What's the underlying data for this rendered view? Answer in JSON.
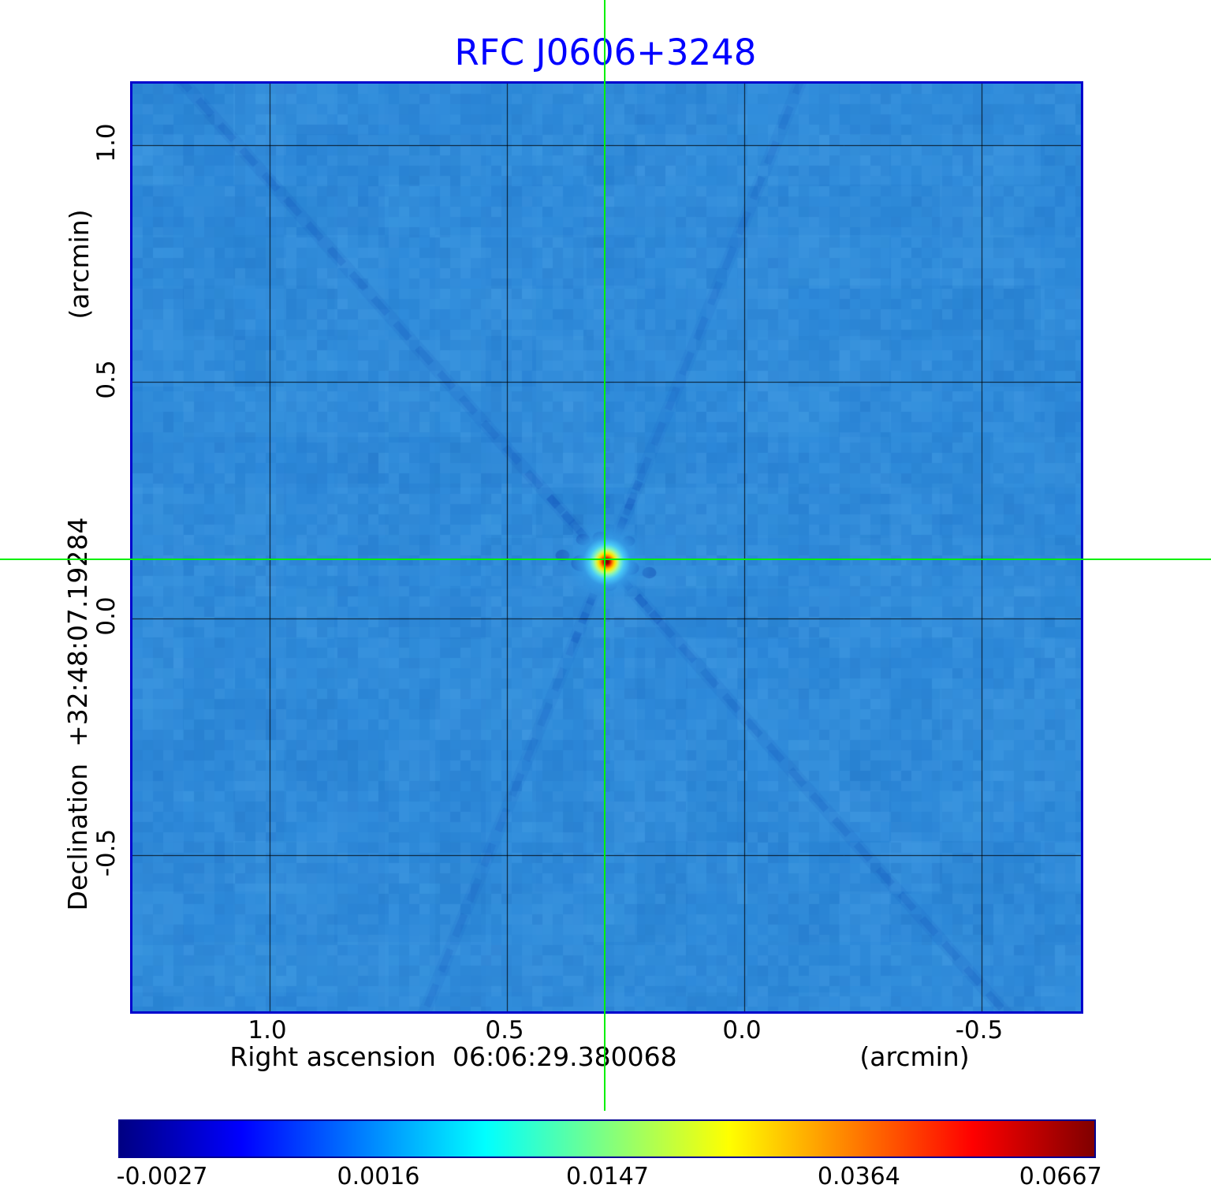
{
  "title": "RFC J0606+3248",
  "colors": {
    "title": "#0000ff",
    "frame": "#0000cd",
    "crosshair": "#00f000",
    "grid": "#000000",
    "background": "#ffffff"
  },
  "y_axis": {
    "unit_label": "(arcmin)",
    "axis_label": "Declination  +32:48:07.19284",
    "tick_labels": [
      "1.0",
      "0.5",
      "0.0",
      "-0.5"
    ]
  },
  "x_axis": {
    "unit_label": "(arcmin)",
    "axis_label": "Right ascension  06:06:29.380068",
    "tick_labels": [
      "1.0",
      "0.5",
      "0.0",
      "-0.5"
    ]
  },
  "colorbar": {
    "tick_labels": [
      "-0.0027",
      "0.0016",
      "0.0147",
      "0.0364",
      "0.0667"
    ],
    "tick_positions": [
      0.045,
      0.267,
      0.502,
      0.76,
      0.967
    ],
    "gradient_colors": [
      "#000083",
      "#0000ff",
      "#0080ff",
      "#00ffff",
      "#80ff80",
      "#ffff00",
      "#ff8000",
      "#ff0000",
      "#800000"
    ]
  },
  "chart_data": {
    "type": "heatmap",
    "title": "RFC J0606+3248",
    "xlabel": "Right ascension 06:06:29.380068 (arcmin)",
    "ylabel": "Declination +32:48:07.19284 (arcmin)",
    "colormap": "jet",
    "grid": true,
    "legend": "colorbar-bottom",
    "x_ticks": [
      1.0,
      0.5,
      0.0,
      -0.5
    ],
    "y_ticks": [
      1.0,
      0.5,
      0.0,
      -0.5
    ],
    "x_range": [
      1.29,
      -0.71
    ],
    "y_range": [
      -0.83,
      1.13
    ],
    "value_ticks": [
      -0.0027,
      0.0016,
      0.0147,
      0.0364,
      0.0667
    ],
    "value_range": [
      -0.0027,
      0.0667
    ],
    "background_level": 0.0016,
    "peak": {
      "x_arcmin": 0.29,
      "y_arcmin": 0.12,
      "value": 0.0667
    },
    "crosshair": {
      "x_arcmin": 0.29,
      "y_arcmin": 0.12
    },
    "render": {
      "seed": 7,
      "base_color": "#2f8cdb",
      "noise": [
        {
          "cell": 64,
          "amp": 0.05
        },
        {
          "cell": 26,
          "amp": 0.04
        },
        {
          "cell": 13,
          "amp": 0.07
        }
      ],
      "streaks": [
        {
          "angle_deg": 48.5,
          "alpha": 0.2,
          "width": 9,
          "dash": [
            26,
            16
          ]
        },
        {
          "angle_deg": 48.5,
          "alpha": 0.1,
          "width": 16
        },
        {
          "angle_deg": -68,
          "alpha": 0.16,
          "width": 9,
          "dash": [
            30,
            18
          ]
        },
        {
          "angle_deg": -68,
          "alpha": 0.08,
          "width": 16
        },
        {
          "angle_deg": 0,
          "alpha": 0.1,
          "width": 9,
          "dash": [
            20,
            14
          ]
        },
        {
          "angle_deg": 48.5,
          "alpha": 0.3,
          "width": 10,
          "span": 110,
          "dash": [
            16,
            12
          ]
        },
        {
          "angle_deg": -68,
          "alpha": 0.28,
          "width": 10,
          "span": 110,
          "dash": [
            14,
            12
          ]
        },
        {
          "angle_deg": 90,
          "alpha": 0.12,
          "width": 8,
          "span": 300,
          "dash": [
            16,
            20
          ]
        }
      ],
      "dark_spots": [
        [
          -32,
          2,
          13,
          0.55
        ],
        [
          30,
          8,
          11,
          0.5
        ],
        [
          -8,
          -30,
          10,
          0.5
        ],
        [
          4,
          30,
          9,
          0.45
        ],
        [
          -30,
          -28,
          9,
          0.4
        ],
        [
          28,
          -26,
          8,
          0.35
        ],
        [
          -56,
          -8,
          9,
          0.3
        ],
        [
          54,
          14,
          9,
          0.3
        ]
      ],
      "source_radius": 58,
      "source_gradient": [
        {
          "r": 0.0,
          "c": "#6b0000"
        },
        {
          "r": 0.05,
          "c": "#a00000"
        },
        {
          "r": 0.09,
          "c": "#e63000"
        },
        {
          "r": 0.13,
          "c": "#ff8c00"
        },
        {
          "r": 0.18,
          "c": "#ffe400"
        },
        {
          "r": 0.24,
          "c": "#c8f870"
        },
        {
          "r": 0.3,
          "c": "#7af0c8"
        },
        {
          "r": 0.38,
          "c": "#48c8f8"
        },
        {
          "r": 0.52,
          "c": "#3498e4"
        },
        {
          "r": 1.0,
          "c": "rgba(47,140,219,0)"
        }
      ]
    }
  }
}
